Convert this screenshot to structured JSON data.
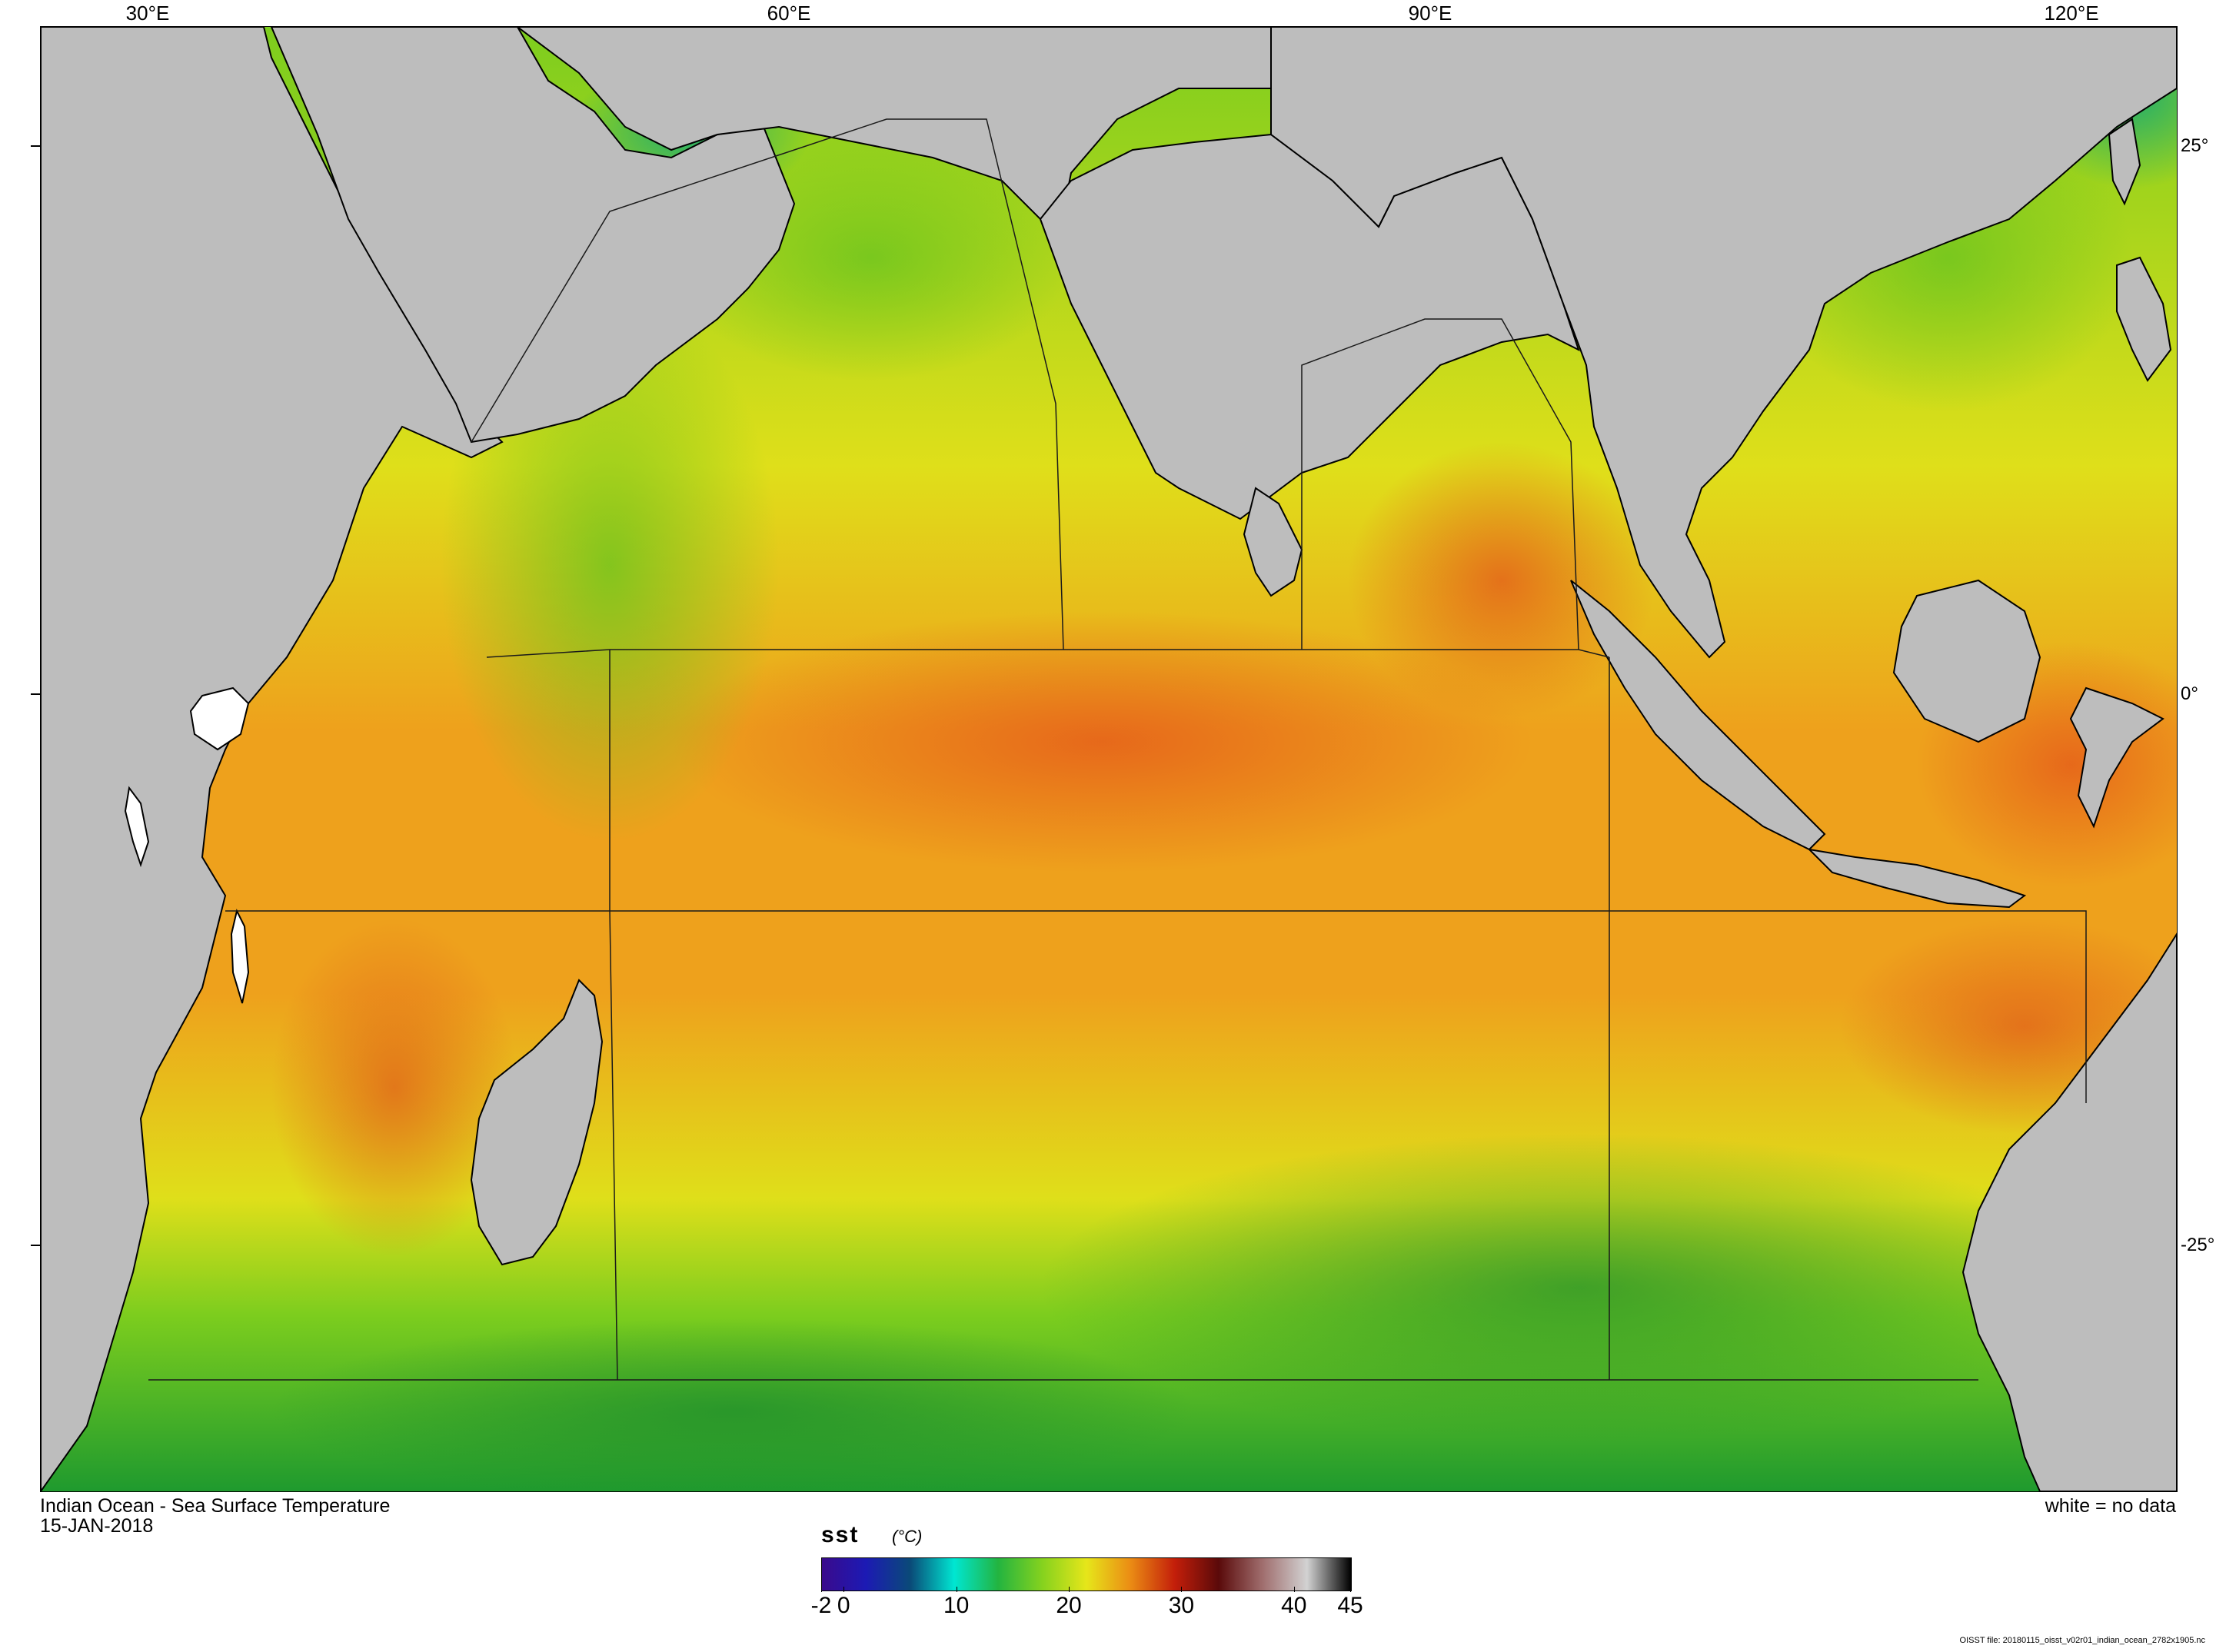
{
  "map": {
    "title": "Indian Ocean - Sea Surface Temperature",
    "date": "15-JAN-2018",
    "no_data_note": "white = no data",
    "file_caption": "OISST file: 20180115_oisst_v02r01_indian_ocean_2782x1905.nc",
    "colors": {
      "land": "#bdbdbd",
      "coast": "#000000",
      "sst_cool": "#1f9a2e",
      "sst_mid": "#7ccd1e",
      "sst_warm": "#dfdf1a",
      "sst_hot": "#eea11c",
      "sst_peak": "#e2621a"
    }
  },
  "axes": {
    "longitude_ticks": [
      "30°E",
      "60°E",
      "90°E",
      "120°E"
    ],
    "latitude_ticks": [
      "25°",
      "0°",
      "-25°"
    ]
  },
  "legend": {
    "variable": "sst",
    "unit": "(°C)",
    "range": [
      -2,
      45
    ],
    "tick_labels": [
      "-2",
      "0",
      "10",
      "20",
      "30",
      "40",
      "45"
    ],
    "colors": [
      "#3a0a8c",
      "#1c1ab4",
      "#0a4a78",
      "#00e6d2",
      "#23b440",
      "#86d21e",
      "#e6e61a",
      "#eb8c14",
      "#c31e0a",
      "#5a0a0a",
      "#a06e6e",
      "#d2d2d2",
      "#000000"
    ]
  }
}
